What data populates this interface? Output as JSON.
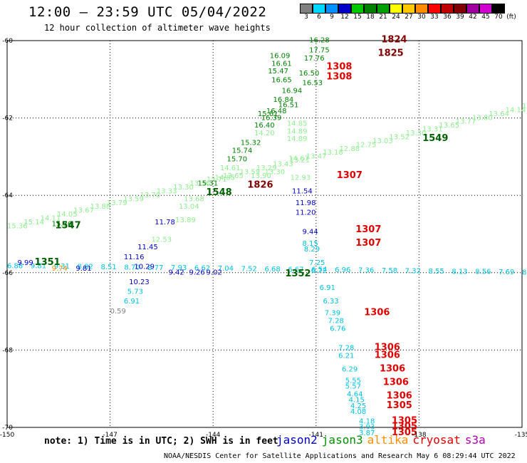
{
  "header": {
    "title": "12:00 – 23:59 UTC 05/04/2022",
    "subtitle": "12 hour collection of altimeter wave heights"
  },
  "colorbar": {
    "labels": [
      "3",
      "6",
      "9",
      "12",
      "15",
      "18",
      "21",
      "24",
      "27",
      "30",
      "33",
      "36",
      "39",
      "42",
      "45",
      "70",
      "(ft)"
    ],
    "colors": [
      "#808080",
      "#00d8ff",
      "#0090ff",
      "#0000c8",
      "#00c800",
      "#008000",
      "#00a000",
      "#ffff00",
      "#ffc800",
      "#ff8c00",
      "#ff0000",
      "#c00000",
      "#800000",
      "#a000a0",
      "#d000d0",
      "#000000"
    ]
  },
  "axes": {
    "lon_ticks": [
      {
        "lon": -150,
        "label": "-150"
      },
      {
        "lon": -147,
        "label": "-147"
      },
      {
        "lon": -144,
        "label": "-144"
      },
      {
        "lon": -141,
        "label": "-141"
      },
      {
        "lon": -138,
        "label": "-138"
      },
      {
        "lon": -135,
        "label": "-135"
      }
    ],
    "lat_ticks": [
      {
        "lat": -60,
        "label": "-60"
      },
      {
        "lat": -62,
        "label": "-62"
      },
      {
        "lat": -64,
        "label": "-64"
      },
      {
        "lat": -66,
        "label": "-66"
      },
      {
        "lat": -68,
        "label": "-68"
      },
      {
        "lat": -70,
        "label": "-70"
      }
    ]
  },
  "footer": {
    "note": "note:  1) Time is in UTC;  2) SWH is in feet",
    "credit": "NOAA/NESDIS Center for Satellite Applications and Research    May  6 08:29:44 UTC 2022"
  },
  "satellites": [
    {
      "name": "jason2",
      "color": "#0000c8"
    },
    {
      "name": "jason3",
      "color": "#009000"
    },
    {
      "name": "altika",
      "color": "#ff8c00"
    },
    {
      "name": "cryosat",
      "color": "#e00000"
    },
    {
      "name": "s3a",
      "color": "#b000b0"
    }
  ],
  "chart_data": {
    "type": "scatter",
    "title": "12:00 – 23:59 UTC 05/04/2022",
    "subtitle": "12 hour collection of altimeter wave heights",
    "xlim": [
      -150,
      -135
    ],
    "ylim": [
      -70,
      -60
    ],
    "grid": true,
    "wave_heights": [
      {
        "lon": -141.2,
        "lat": -60.05,
        "v": "16.28",
        "c": "#008000"
      },
      {
        "lon": -141.2,
        "lat": -60.3,
        "v": "17.75",
        "c": "#008000"
      },
      {
        "lon": -141.35,
        "lat": -60.52,
        "v": "17.76",
        "c": "#008000"
      },
      {
        "lon": -141.5,
        "lat": -60.9,
        "v": "16.50",
        "c": "#008000"
      },
      {
        "lon": -141.4,
        "lat": -61.15,
        "v": "16.53",
        "c": "#008000"
      },
      {
        "lon": -142.35,
        "lat": -60.45,
        "v": "16.09",
        "c": "#008000"
      },
      {
        "lon": -142.3,
        "lat": -60.65,
        "v": "16.61",
        "c": "#008000"
      },
      {
        "lon": -142.4,
        "lat": -60.85,
        "v": "15.47",
        "c": "#008000"
      },
      {
        "lon": -142.3,
        "lat": -61.08,
        "v": "16.65",
        "c": "#008000"
      },
      {
        "lon": -142.0,
        "lat": -61.35,
        "v": "16.94",
        "c": "#008000"
      },
      {
        "lon": -142.25,
        "lat": -61.58,
        "v": "16.84",
        "c": "#008000"
      },
      {
        "lon": -142.1,
        "lat": -61.72,
        "v": "16.51",
        "c": "#008000"
      },
      {
        "lon": -142.45,
        "lat": -61.88,
        "v": "16.48",
        "c": "#008000"
      },
      {
        "lon": -142.6,
        "lat": -62.05,
        "v": "16.39",
        "c": "#008000"
      },
      {
        "lon": -142.8,
        "lat": -62.25,
        "v": "16.40",
        "c": "#008000"
      },
      {
        "lon": -143.2,
        "lat": -62.7,
        "v": "15.32",
        "c": "#008000"
      },
      {
        "lon": -143.45,
        "lat": -62.9,
        "v": "15.74",
        "c": "#008000"
      },
      {
        "lon": -143.6,
        "lat": -63.12,
        "v": "15.70",
        "c": "#008000"
      },
      {
        "lon": -144.45,
        "lat": -63.75,
        "v": "15.31",
        "c": "#008000"
      },
      {
        "lon": -148.7,
        "lat": -64.8,
        "v": "15.36",
        "c": "#008000"
      },
      {
        "lon": -142.7,
        "lat": -61.95,
        "v": "15.61",
        "c": "#008000"
      },
      {
        "lon": -141.85,
        "lat": -62.2,
        "v": "14.85",
        "c": "#90ee90"
      },
      {
        "lon": -141.85,
        "lat": -62.4,
        "v": "14.89",
        "c": "#90ee90"
      },
      {
        "lon": -141.85,
        "lat": -62.6,
        "v": "14.89",
        "c": "#90ee90"
      },
      {
        "lon": -142.8,
        "lat": -62.45,
        "v": "14.20",
        "c": "#90ee90"
      },
      {
        "lon": -143.8,
        "lat": -63.35,
        "v": "14.61",
        "c": "#90ee90"
      },
      {
        "lon": -143.95,
        "lat": -63.6,
        "v": "14.85",
        "c": "#90ee90"
      },
      {
        "lon": -144.85,
        "lat": -64.15,
        "v": "13.68",
        "c": "#90ee90"
      },
      {
        "lon": -145.0,
        "lat": -64.35,
        "v": "13.04",
        "c": "#90ee90"
      },
      {
        "lon": -145.1,
        "lat": -64.7,
        "v": "13.89",
        "c": "#90ee90"
      },
      {
        "lon": -145.8,
        "lat": -65.2,
        "v": "12.53",
        "c": "#90ee90"
      },
      {
        "lon": -141.8,
        "lat": -63.1,
        "v": "14.67",
        "c": "#90ee90"
      },
      {
        "lon": -141.75,
        "lat": -63.6,
        "v": "12.93",
        "c": "#90ee90"
      },
      {
        "lon": -142.5,
        "lat": -63.45,
        "v": "13.30",
        "c": "#90ee90"
      },
      {
        "lon": -142.9,
        "lat": -63.55,
        "v": "13.90",
        "c": "#90ee90"
      },
      {
        "lon": -145.7,
        "lat": -64.75,
        "v": "11.78",
        "c": "#0000c8"
      },
      {
        "lon": -146.2,
        "lat": -65.4,
        "v": "11.45",
        "c": "#0000c8"
      },
      {
        "lon": -146.6,
        "lat": -65.65,
        "v": "11.16",
        "c": "#0000c8"
      },
      {
        "lon": -146.3,
        "lat": -65.9,
        "v": "10.29",
        "c": "#0000c8"
      },
      {
        "lon": -146.45,
        "lat": -66.3,
        "v": "10.23",
        "c": "#0000c8"
      },
      {
        "lon": -141.7,
        "lat": -63.95,
        "v": "11.54",
        "c": "#0000c8"
      },
      {
        "lon": -141.6,
        "lat": -64.25,
        "v": "11.98",
        "c": "#0000c8"
      },
      {
        "lon": -141.6,
        "lat": -64.5,
        "v": "11.20",
        "c": "#0000c8"
      },
      {
        "lon": -141.4,
        "lat": -65.0,
        "v": "9.44",
        "c": "#0000c8"
      },
      {
        "lon": -149.7,
        "lat": -65.8,
        "v": "9.99",
        "c": "#0000c8"
      },
      {
        "lon": -148.0,
        "lat": -65.95,
        "v": "9.81",
        "c": "#0000c8"
      },
      {
        "lon": -145.3,
        "lat": -66.05,
        "v": "9.42",
        "c": "#0000c8"
      },
      {
        "lon": -144.7,
        "lat": -66.05,
        "v": "9.26",
        "c": "#0000c8"
      },
      {
        "lon": -144.2,
        "lat": -66.05,
        "v": "9.02",
        "c": "#0000c8"
      },
      {
        "lon": -141.4,
        "lat": -65.3,
        "v": "8.15",
        "c": "#00c0e0"
      },
      {
        "lon": -141.35,
        "lat": -65.45,
        "v": "8.29",
        "c": "#00c0e0"
      },
      {
        "lon": -141.2,
        "lat": -65.8,
        "v": "7.25",
        "c": "#00c0e0"
      },
      {
        "lon": -141.15,
        "lat": -66.0,
        "v": "6.72",
        "c": "#00c0e0"
      },
      {
        "lon": -140.9,
        "lat": -66.45,
        "v": "6.91",
        "c": "#00c0e0"
      },
      {
        "lon": -140.8,
        "lat": -66.8,
        "v": "6.33",
        "c": "#00c0e0"
      },
      {
        "lon": -140.75,
        "lat": -67.1,
        "v": "7.39",
        "c": "#00c0e0"
      },
      {
        "lon": -140.65,
        "lat": -67.3,
        "v": "7.28",
        "c": "#00c0e0"
      },
      {
        "lon": -140.6,
        "lat": -67.5,
        "v": "6.76",
        "c": "#00c0e0"
      },
      {
        "lon": -140.35,
        "lat": -68.0,
        "v": "7.28",
        "c": "#00c0e0"
      },
      {
        "lon": -140.35,
        "lat": -68.2,
        "v": "6.21",
        "c": "#00c0e0"
      },
      {
        "lon": -140.25,
        "lat": -68.55,
        "v": "6.29",
        "c": "#00c0e0"
      },
      {
        "lon": -140.15,
        "lat": -68.85,
        "v": "5.55",
        "c": "#00c0e0"
      },
      {
        "lon": -140.15,
        "lat": -69.0,
        "v": "5.57",
        "c": "#00c0e0"
      },
      {
        "lon": -140.1,
        "lat": -69.2,
        "v": "4.64",
        "c": "#00c0e0"
      },
      {
        "lon": -140.05,
        "lat": -69.35,
        "v": "4.15",
        "c": "#00c0e0"
      },
      {
        "lon": -140.0,
        "lat": -69.5,
        "v": "4.25",
        "c": "#00c0e0"
      },
      {
        "lon": -140.0,
        "lat": -69.65,
        "v": "4.08",
        "c": "#00c0e0"
      },
      {
        "lon": -139.75,
        "lat": -69.9,
        "v": "4.18",
        "c": "#00c0e0"
      },
      {
        "lon": -139.75,
        "lat": -70.05,
        "v": "3.93",
        "c": "#00c0e0"
      },
      {
        "lon": -139.75,
        "lat": -70.2,
        "v": "3.87",
        "c": "#00c0e0"
      },
      {
        "lon": -146.5,
        "lat": -66.55,
        "v": "5.73",
        "c": "#00c0e0"
      },
      {
        "lon": -146.6,
        "lat": -66.8,
        "v": "6.91",
        "c": "#00c0e0"
      },
      {
        "lon": -147.0,
        "lat": -67.05,
        "v": "0.59",
        "c": "#808080"
      }
    ],
    "track_times": [
      {
        "lon": -139.1,
        "lat": -60.05,
        "v": "1824",
        "c": "#800000"
      },
      {
        "lon": -139.2,
        "lat": -60.4,
        "v": "1825",
        "c": "#800000"
      },
      {
        "lon": -140.7,
        "lat": -60.75,
        "v": "1308",
        "c": "#e00000"
      },
      {
        "lon": -140.7,
        "lat": -61.0,
        "v": "1308",
        "c": "#e00000"
      },
      {
        "lon": -143.0,
        "lat": -63.8,
        "v": "1826",
        "c": "#800000"
      },
      {
        "lon": -140.4,
        "lat": -63.55,
        "v": "1307",
        "c": "#e00000"
      },
      {
        "lon": -139.85,
        "lat": -64.95,
        "v": "1307",
        "c": "#e00000"
      },
      {
        "lon": -139.85,
        "lat": -65.3,
        "v": "1307",
        "c": "#e00000"
      },
      {
        "lon": -139.6,
        "lat": -67.1,
        "v": "1306",
        "c": "#e00000"
      },
      {
        "lon": -139.3,
        "lat": -68.0,
        "v": "1306",
        "c": "#e00000"
      },
      {
        "lon": -139.3,
        "lat": -68.2,
        "v": "1306",
        "c": "#e00000"
      },
      {
        "lon": -139.15,
        "lat": -68.55,
        "v": "1306",
        "c": "#e00000"
      },
      {
        "lon": -139.05,
        "lat": -68.9,
        "v": "1306",
        "c": "#e00000"
      },
      {
        "lon": -138.95,
        "lat": -69.25,
        "v": "1306",
        "c": "#e00000"
      },
      {
        "lon": -138.95,
        "lat": -69.5,
        "v": "1305",
        "c": "#e00000"
      },
      {
        "lon": -138.8,
        "lat": -69.9,
        "v": "1305",
        "c": "#e00000"
      },
      {
        "lon": -138.8,
        "lat": -70.05,
        "v": "1305",
        "c": "#e00000"
      },
      {
        "lon": -138.8,
        "lat": -70.2,
        "v": "1305",
        "c": "#e00000"
      },
      {
        "lon": -144.2,
        "lat": -64.0,
        "v": "1548",
        "c": "#006000"
      },
      {
        "lon": -148.6,
        "lat": -64.85,
        "v": "1547",
        "c": "#006000"
      },
      {
        "lon": -137.9,
        "lat": -62.6,
        "v": "1549",
        "c": "#006000"
      },
      {
        "lon": -149.2,
        "lat": -65.8,
        "v": "1351",
        "c": "#006000"
      },
      {
        "lon": -141.9,
        "lat": -66.1,
        "v": "1352",
        "c": "#006000"
      }
    ],
    "tracks": [
      {
        "name": "jason3-asc",
        "c": "#90ee90",
        "from": [
          -150,
          -64.85
        ],
        "to": [
          -135,
          -61.75
        ],
        "values": [
          "15.36",
          "15.14",
          "14.11",
          "14.05",
          "13.67",
          "13.88",
          "13.79",
          "13.59",
          "13.70",
          "13.33",
          "13.30",
          "13.56",
          "13.71",
          "13.65",
          "13.59",
          "13.29",
          "13.43",
          "13.21",
          "13.47",
          "13.18",
          "12.88",
          "12.75",
          "13.03",
          "13.52",
          "13.30",
          "13.31",
          "13.65",
          "13.77",
          "13.80",
          "13.64",
          "14.14",
          "14.09"
        ]
      },
      {
        "name": "jason3-asc2",
        "c": "#00c0e0",
        "from": [
          -150,
          -65.88
        ],
        "to": [
          -135,
          -66.05
        ],
        "values": [
          "6.88",
          "9.81",
          "9.31",
          "8.82",
          "8.51",
          "8.70",
          "8.77",
          "7.93",
          "6.62",
          "7.04",
          "7.52",
          "6.68",
          "6.67",
          "6.54",
          "6.96",
          "7.36",
          "7.58",
          "7.32",
          "8.55",
          "8.13",
          "8.56",
          "7.69",
          "8.08"
        ]
      },
      {
        "name": "jason2-track",
        "c": "#0000c8",
        "from": [
          -144.4,
          -63.9
        ],
        "to": [
          -142.3,
          -60.3
        ],
        "values": []
      },
      {
        "name": "altika-track",
        "c": "#ff8c00",
        "from": [
          -148.7,
          -65.95
        ],
        "to": [
          -148.2,
          -65.95
        ],
        "values": [
          "9.74"
        ]
      }
    ]
  }
}
